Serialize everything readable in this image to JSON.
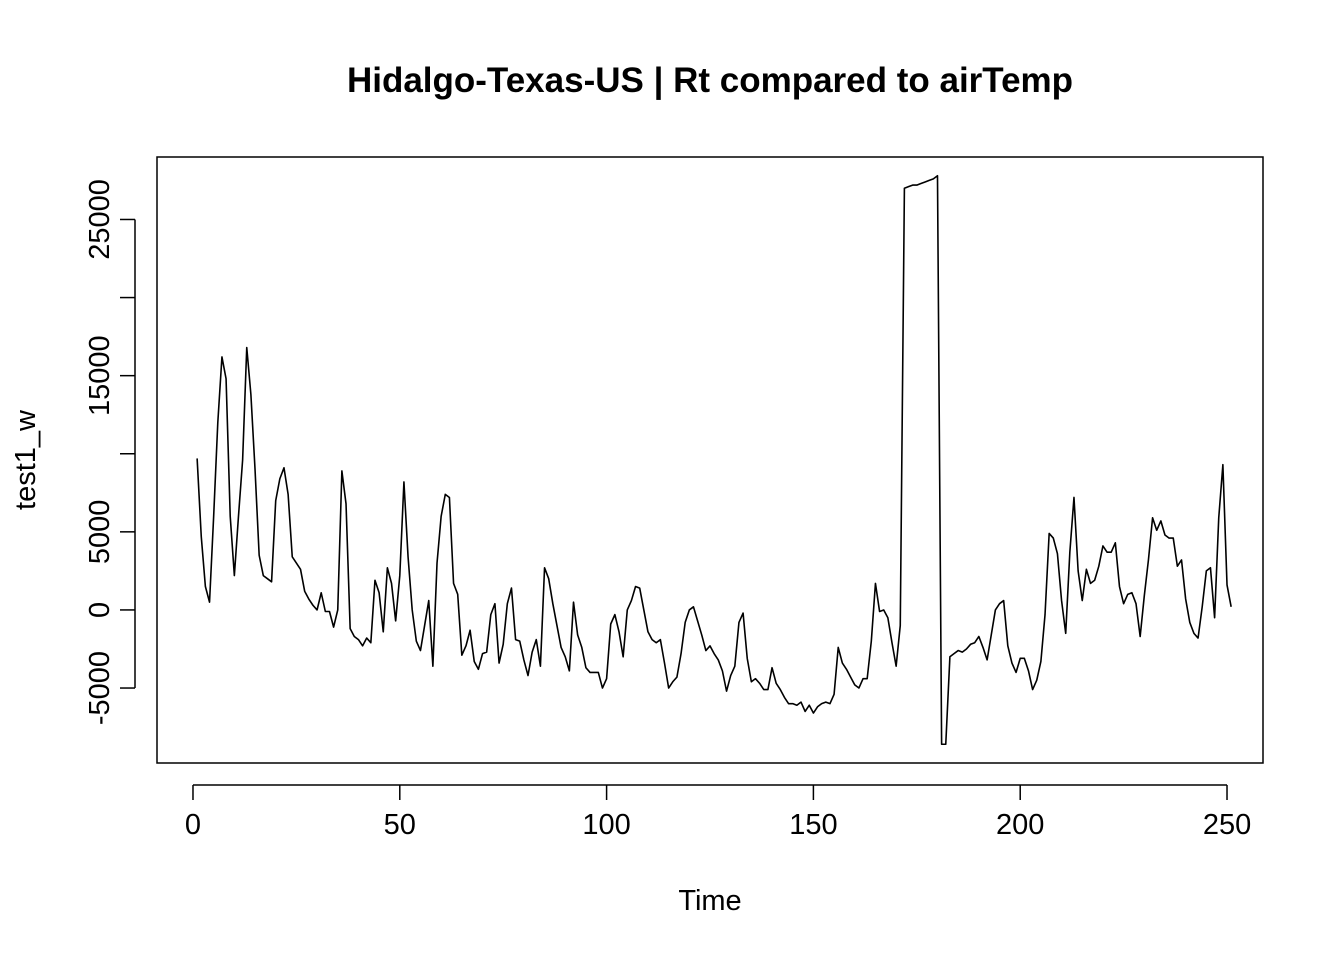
{
  "chart_data": {
    "type": "line",
    "title": "Hidalgo-Texas-US | Rt compared to airTemp",
    "xlabel": "Time",
    "ylabel": "test1_w",
    "xlim": [
      -8.7,
      258.7
    ],
    "ylim": [
      -9800,
      29000
    ],
    "x_ticks": [
      0,
      50,
      100,
      150,
      200,
      250
    ],
    "x_tick_labels": [
      "0",
      "50",
      "100",
      "150",
      "200",
      "250"
    ],
    "y_ticks": [
      -5000,
      0,
      5000,
      10000,
      15000,
      20000,
      25000
    ],
    "y_tick_labels": [
      "-5000",
      "0",
      "5000",
      "",
      "15000",
      "",
      "25000"
    ],
    "line_color": "#000000",
    "series": [
      {
        "name": "test1_w",
        "x_start": 1,
        "values": [
          9700,
          4700,
          1500,
          500,
          6000,
          12000,
          16200,
          14800,
          6000,
          2200,
          6000,
          9600,
          16800,
          13800,
          9000,
          3500,
          2200,
          2000,
          1800,
          7000,
          8400,
          9100,
          7400,
          3400,
          3000,
          2600,
          1200,
          700,
          300,
          0,
          1100,
          -100,
          -100,
          -1100,
          0,
          8900,
          6800,
          -1200,
          -1700,
          -1900,
          -2300,
          -1800,
          -2100,
          1900,
          1100,
          -1400,
          2700,
          1700,
          -700,
          2200,
          8200,
          3400,
          0,
          -2000,
          -2600,
          -1000,
          600,
          -3600,
          3000,
          6000,
          7400,
          7200,
          1700,
          1000,
          -2900,
          -2300,
          -1300,
          -3300,
          -3800,
          -2800,
          -2700,
          -300,
          400,
          -3400,
          -2200,
          400,
          1400,
          -1900,
          -2000,
          -3200,
          -4200,
          -2700,
          -1900,
          -3600,
          2700,
          2000,
          400,
          -1000,
          -2400,
          -3000,
          -3900,
          500,
          -1600,
          -2400,
          -3700,
          -4000,
          -4000,
          -4000,
          -5000,
          -4400,
          -900,
          -300,
          -1400,
          -3000,
          0,
          600,
          1500,
          1400,
          0,
          -1400,
          -1900,
          -2100,
          -1900,
          -3400,
          -5000,
          -4600,
          -4300,
          -2800,
          -800,
          0,
          200,
          -700,
          -1600,
          -2600,
          -2300,
          -2800,
          -3200,
          -3900,
          -5200,
          -4200,
          -3600,
          -800,
          -200,
          -3100,
          -4600,
          -4400,
          -4700,
          -5100,
          -5100,
          -3700,
          -4700,
          -5100,
          -5600,
          -6000,
          -6000,
          -6100,
          -5900,
          -6500,
          -6100,
          -6600,
          -6200,
          -6000,
          -5900,
          -6000,
          -5400,
          -2400,
          -3400,
          -3800,
          -4300,
          -4800,
          -5000,
          -4400,
          -4400,
          -2000,
          1700,
          -100,
          0,
          -500,
          -2100,
          -3600,
          -1000,
          27000,
          27100,
          27200,
          27200,
          27300,
          27400,
          27500,
          27600,
          27800,
          -8600,
          -8600,
          -3000,
          -2800,
          -2600,
          -2700,
          -2500,
          -2200,
          -2100,
          -1700,
          -2400,
          -3200,
          -1600,
          0,
          400,
          600,
          -2300,
          -3400,
          -4000,
          -3100,
          -3100,
          -3900,
          -5100,
          -4500,
          -3300,
          -300,
          4900,
          4600,
          3600,
          600,
          -1500,
          3700,
          7200,
          2500,
          600,
          2600,
          1700,
          1900,
          2800,
          4100,
          3700,
          3700,
          4300,
          1500,
          400,
          1000,
          1100,
          400,
          -1700,
          900,
          3200,
          5900,
          5100,
          5700,
          4800,
          4600,
          4600,
          2800,
          3200,
          700,
          -800,
          -1500,
          -1800,
          200,
          2500,
          2700,
          -500,
          5900,
          9300,
          1600,
          200
        ]
      }
    ]
  }
}
